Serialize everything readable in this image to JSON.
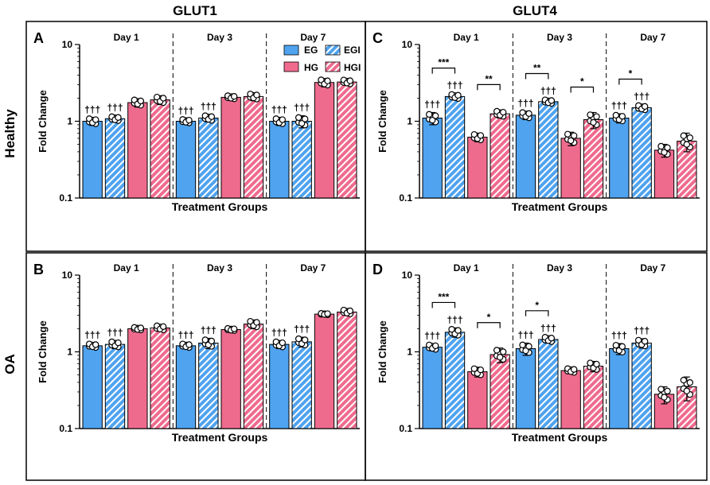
{
  "titles": {
    "col1": "GLUT1",
    "col2": "GLUT4",
    "row1": "Healthy",
    "row2": "OA"
  },
  "legend": [
    {
      "label": "EG",
      "color": "#4fa3ef",
      "hatch": false
    },
    {
      "label": "EGI",
      "color": "#4fa3ef",
      "hatch": true
    },
    {
      "label": "HG",
      "color": "#ef6b8e",
      "hatch": false
    },
    {
      "label": "HGI",
      "color": "#ef6b8e",
      "hatch": true
    }
  ],
  "colors": {
    "EG": "#4fa3ef",
    "HG": "#ef6b8e",
    "border": "#000000"
  },
  "chart_data": [
    {
      "panel": "A",
      "type": "bar",
      "scale": "log",
      "ylabel": "Fold Change",
      "xlabel": "Treatment Groups",
      "yticks": [
        "0.1",
        "1",
        "10"
      ],
      "ylim": [
        0.1,
        10
      ],
      "days": [
        "Day 1",
        "Day 3",
        "Day 7"
      ],
      "groups": [
        "EG",
        "EGI",
        "HG",
        "HGI"
      ],
      "series": [
        {
          "day": "Day 1",
          "values": [
            1.0,
            1.08,
            1.75,
            1.9
          ],
          "errors": [
            0.12,
            0.1,
            0.22,
            0.25
          ],
          "labels": [
            "†††",
            "†††",
            "",
            ""
          ],
          "brackets": []
        },
        {
          "day": "Day 3",
          "values": [
            1.0,
            1.1,
            2.05,
            2.1
          ],
          "errors": [
            0.08,
            0.12,
            0.15,
            0.25
          ],
          "labels": [
            "†††",
            "†††",
            "",
            ""
          ],
          "brackets": []
        },
        {
          "day": "Day 7",
          "values": [
            1.0,
            1.0,
            3.2,
            3.25
          ],
          "errors": [
            0.12,
            0.18,
            0.4,
            0.3
          ],
          "labels": [
            "†††",
            "†††",
            "",
            ""
          ],
          "brackets": []
        }
      ]
    },
    {
      "panel": "B",
      "type": "bar",
      "scale": "log",
      "ylabel": "Fold Change",
      "xlabel": "Treatment Groups",
      "yticks": [
        "0.1",
        "1",
        "10"
      ],
      "ylim": [
        0.1,
        10
      ],
      "days": [
        "Day 1",
        "Day 3",
        "Day 7"
      ],
      "groups": [
        "EG",
        "EGI",
        "HG",
        "HGI"
      ],
      "series": [
        {
          "day": "Day 1",
          "values": [
            1.2,
            1.25,
            2.0,
            2.05
          ],
          "errors": [
            0.1,
            0.15,
            0.12,
            0.2
          ],
          "labels": [
            "†††",
            "†††",
            "",
            ""
          ],
          "brackets": []
        },
        {
          "day": "Day 3",
          "values": [
            1.2,
            1.3,
            1.95,
            2.3
          ],
          "errors": [
            0.1,
            0.2,
            0.1,
            0.3
          ],
          "labels": [
            "†††",
            "†††",
            "",
            ""
          ],
          "brackets": []
        },
        {
          "day": "Day 7",
          "values": [
            1.25,
            1.35,
            3.1,
            3.3
          ],
          "errors": [
            0.15,
            0.2,
            0.1,
            0.3
          ],
          "labels": [
            "†††",
            "†††",
            "",
            ""
          ],
          "brackets": []
        }
      ]
    },
    {
      "panel": "C",
      "type": "bar",
      "scale": "log",
      "ylabel": "Fold Change",
      "xlabel": "Treatment Groups",
      "yticks": [
        "0.1",
        "1",
        "10"
      ],
      "ylim": [
        0.1,
        10
      ],
      "days": [
        "Day 1",
        "Day 3",
        "Day 7"
      ],
      "groups": [
        "EG",
        "EGI",
        "HG",
        "HGI"
      ],
      "series": [
        {
          "day": "Day 1",
          "values": [
            1.1,
            2.1,
            0.62,
            1.25
          ],
          "errors": [
            0.2,
            0.2,
            0.08,
            0.15
          ],
          "labels": [
            "†††",
            "†††",
            "",
            ""
          ],
          "brackets": [
            {
              "from": 0,
              "to": 1,
              "label": "***"
            },
            {
              "from": 2,
              "to": 3,
              "label": "**"
            }
          ]
        },
        {
          "day": "Day 3",
          "values": [
            1.2,
            1.8,
            0.6,
            1.05
          ],
          "errors": [
            0.15,
            0.15,
            0.12,
            0.25
          ],
          "labels": [
            "†††",
            "†††",
            "",
            ""
          ],
          "brackets": [
            {
              "from": 0,
              "to": 1,
              "label": "**"
            },
            {
              "from": 2,
              "to": 3,
              "label": "*"
            }
          ]
        },
        {
          "day": "Day 7",
          "values": [
            1.1,
            1.5,
            0.42,
            0.55
          ],
          "errors": [
            0.15,
            0.15,
            0.08,
            0.15
          ],
          "labels": [
            "†††",
            "†††",
            "",
            ""
          ],
          "brackets": [
            {
              "from": 0,
              "to": 1,
              "label": "*"
            }
          ]
        }
      ]
    },
    {
      "panel": "D",
      "type": "bar",
      "scale": "log",
      "ylabel": "Fold Change",
      "xlabel": "Treatment Groups",
      "yticks": [
        "0.1",
        "1",
        "10"
      ],
      "ylim": [
        0.1,
        10
      ],
      "days": [
        "Day 1",
        "Day 3",
        "Day 7"
      ],
      "groups": [
        "EG",
        "EGI",
        "HG",
        "HGI"
      ],
      "series": [
        {
          "day": "Day 1",
          "values": [
            1.15,
            1.8,
            0.55,
            0.92
          ],
          "errors": [
            0.12,
            0.25,
            0.08,
            0.2
          ],
          "labels": [
            "†††",
            "†††",
            "",
            ""
          ],
          "brackets": [
            {
              "from": 0,
              "to": 1,
              "label": "***"
            },
            {
              "from": 2,
              "to": 3,
              "label": "*"
            }
          ]
        },
        {
          "day": "Day 3",
          "values": [
            1.1,
            1.45,
            0.57,
            0.65
          ],
          "errors": [
            0.2,
            0.15,
            0.05,
            0.1
          ],
          "labels": [
            "†††",
            "†††",
            "",
            ""
          ],
          "brackets": [
            {
              "from": 0,
              "to": 1,
              "label": "*"
            }
          ]
        },
        {
          "day": "Day 7",
          "values": [
            1.1,
            1.3,
            0.28,
            0.35
          ],
          "errors": [
            0.18,
            0.18,
            0.07,
            0.12
          ],
          "labels": [
            "†††",
            "†††",
            "",
            ""
          ],
          "brackets": []
        }
      ]
    }
  ]
}
